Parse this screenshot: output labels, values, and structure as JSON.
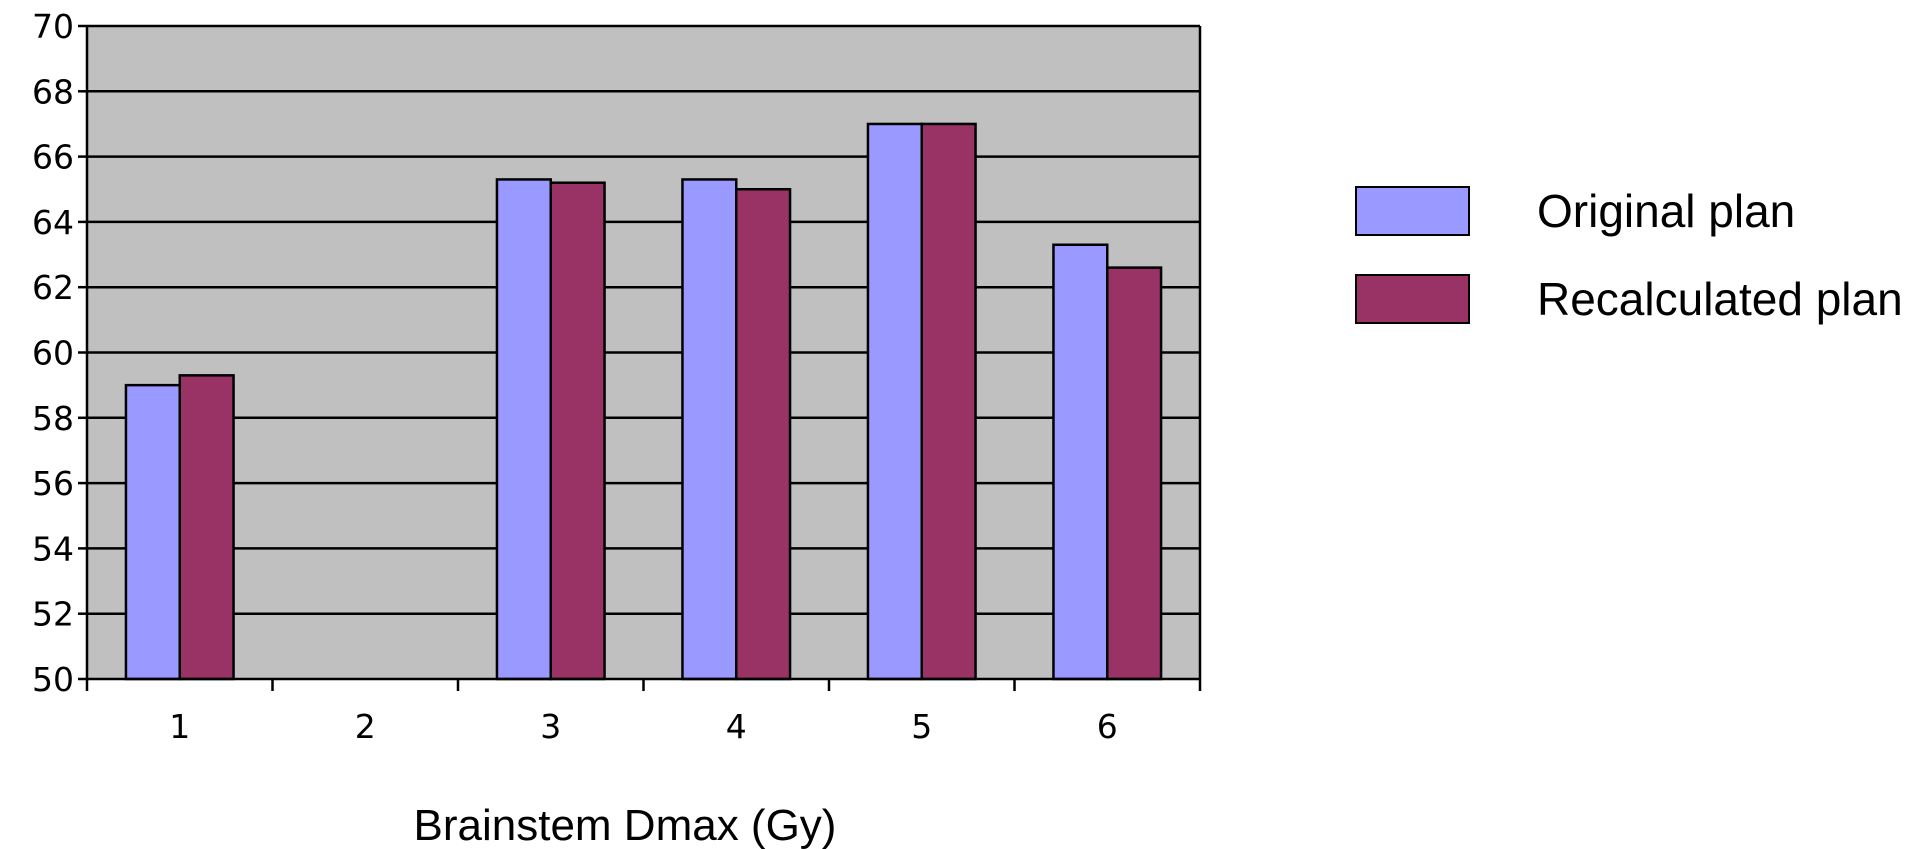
{
  "chart_data": {
    "type": "bar",
    "xlabel": "Brainstem Dmax (Gy)",
    "ylabel": "",
    "ylim": [
      50,
      70
    ],
    "yticks": [
      50,
      52,
      54,
      56,
      58,
      60,
      62,
      64,
      66,
      68,
      70
    ],
    "grid": true,
    "legend_position": "right",
    "categories": [
      "1",
      "2",
      "3",
      "4",
      "5",
      "6"
    ],
    "series": [
      {
        "name": "Original plan",
        "color": "#9999ff",
        "values": [
          59.0,
          null,
          65.3,
          65.3,
          67.0,
          63.3
        ]
      },
      {
        "name": "Recalculated plan",
        "color": "#993366",
        "values": [
          59.3,
          null,
          65.2,
          65.0,
          67.0,
          62.6
        ]
      }
    ],
    "plot_background": "#c0c0c0"
  }
}
